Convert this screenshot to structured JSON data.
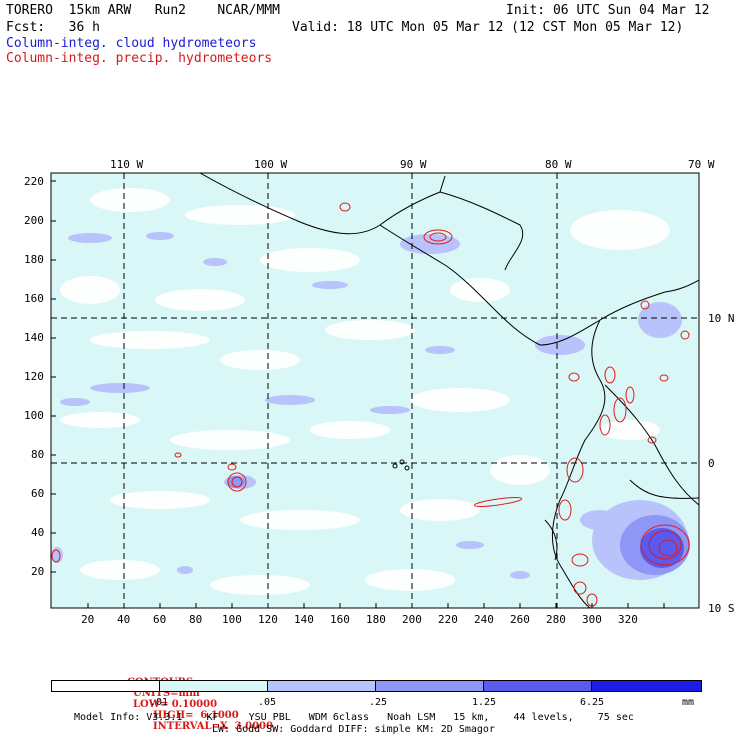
{
  "header": {
    "line1_left": "TORERO  15km ARW   Run2    NCAR/MMM",
    "line1_right": "Init: 06 UTC Sun 04 Mar 12",
    "line2_left": "Fcst:   36 h",
    "line2_right": "Valid: 18 UTC Mon 05 Mar 12 (12 CST Mon 05 Mar 12)",
    "field1": "Column-integ. cloud hydrometeors",
    "field2": "Column-integ. precip. hydrometeors"
  },
  "axes": {
    "top": [
      "110 W",
      "100 W",
      "90 W",
      "80 W",
      "70 W"
    ],
    "right": [
      "10 N",
      "0",
      "10 S"
    ],
    "left": [
      "220",
      "200",
      "180",
      "160",
      "140",
      "120",
      "100",
      "80",
      "60",
      "40",
      "20"
    ],
    "bottom": [
      "20",
      "40",
      "60",
      "80",
      "100",
      "120",
      "140",
      "160",
      "180",
      "200",
      "220",
      "240",
      "260",
      "280",
      "300",
      "320"
    ]
  },
  "contours": {
    "label": "CONTOURS:",
    "units": "UNITS=mm",
    "low": "LOW= 0.10000",
    "high": "HIGH=  6.1000",
    "interval": "INTERVAL=X  3.0000"
  },
  "colorbar": {
    "levels": [
      ".01",
      ".05",
      ".25",
      "1.25",
      "6.25"
    ],
    "unit": "mm",
    "colors": [
      "#ffffff",
      "#d9f7f7",
      "#b8c2fb",
      "#8e96f6",
      "#5a5aee",
      "#1c1ce8"
    ]
  },
  "footer": {
    "line1": "Model Info: V3.3.1    KF     YSU PBL   WDM 6class   Noah LSM   15 km,    44 levels,    75 sec",
    "line2": "LW: Godd SW: Goddard DIFF: simple KM: 2D Smagor"
  }
}
